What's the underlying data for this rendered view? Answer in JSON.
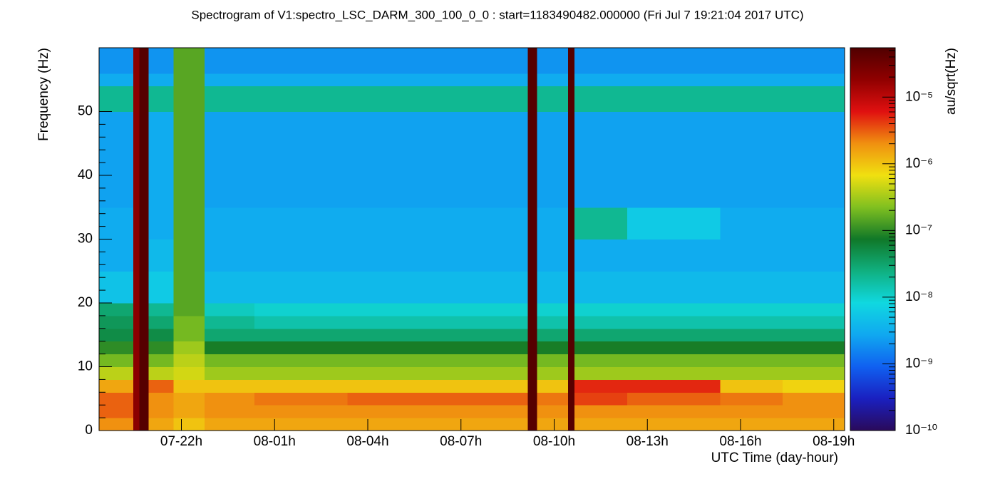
{
  "chart_data": {
    "type": "heatmap",
    "title": "Spectrogram of V1:spectro_LSC_DARM_300_100_0_0 : start=1183490482.000000 (Fri Jul  7 19:21:04 2017 UTC)",
    "x_label": "UTC Time (day-hour)",
    "y_label": "Frequency (Hz)",
    "colorbar_label": "au/sqrt(Hz)",
    "x": [
      0,
      1.1,
      1.3,
      1.6,
      2.4,
      3.4,
      5,
      8,
      11,
      13.8,
      14.1,
      15.1,
      15.3,
      17,
      20,
      22,
      24
    ],
    "y": [
      0,
      2,
      4,
      6,
      8,
      10,
      12,
      14,
      16,
      18,
      20,
      25,
      30,
      35,
      40,
      45,
      50,
      52,
      54,
      56,
      60
    ],
    "z": [
      [
        2e-06,
        2e-05,
        5e-05,
        1.5e-06,
        1e-06,
        1.5e-06,
        1.5e-06,
        1.5e-06,
        1.5e-06,
        5e-05,
        1.5e-06,
        5e-05,
        1.5e-06,
        1.5e-06,
        1.5e-06,
        1.5e-06
      ],
      [
        3e-06,
        2e-05,
        5e-05,
        2e-06,
        1.5e-06,
        2e-06,
        2e-06,
        2e-06,
        2e-06,
        5e-05,
        2e-06,
        5e-05,
        2e-06,
        2e-06,
        2e-06,
        2e-06
      ],
      [
        3e-06,
        2e-05,
        5e-05,
        2e-06,
        1.5e-06,
        2e-06,
        2.5e-06,
        3e-06,
        3e-06,
        5e-05,
        2.5e-06,
        5e-05,
        4e-06,
        3e-06,
        2.5e-06,
        2e-06
      ],
      [
        1.5e-06,
        2e-05,
        5e-05,
        3e-06,
        1e-06,
        1e-06,
        1e-06,
        1e-06,
        1e-06,
        5e-05,
        1e-06,
        5e-05,
        5e-06,
        5e-06,
        1e-06,
        8e-07
      ],
      [
        4e-07,
        2e-05,
        5e-05,
        4e-07,
        5e-07,
        3e-07,
        3e-07,
        3e-07,
        3e-07,
        5e-05,
        3e-07,
        5e-05,
        3e-07,
        3e-07,
        3e-07,
        3e-07
      ],
      [
        2e-07,
        2e-05,
        5e-05,
        2e-07,
        4e-07,
        2e-07,
        2e-07,
        2e-07,
        2e-07,
        5e-05,
        2e-07,
        5e-05,
        2e-07,
        2e-07,
        2e-07,
        2e-07
      ],
      [
        1e-07,
        2e-05,
        5e-05,
        1e-07,
        3e-07,
        8e-08,
        8e-08,
        8e-08,
        8e-08,
        5e-05,
        8e-08,
        5e-05,
        8e-08,
        8e-08,
        8e-08,
        8e-08
      ],
      [
        5e-08,
        2e-05,
        5e-05,
        5e-08,
        2e-07,
        3e-08,
        3e-08,
        3e-08,
        3e-08,
        5e-05,
        3e-08,
        5e-05,
        3e-08,
        3e-08,
        3e-08,
        3e-08
      ],
      [
        4e-08,
        2e-05,
        5e-05,
        3e-08,
        2e-07,
        2e-08,
        1.5e-08,
        1.5e-08,
        1.5e-08,
        5e-05,
        1.5e-08,
        5e-05,
        1.5e-08,
        1.5e-08,
        1.5e-08,
        1.5e-08
      ],
      [
        3e-08,
        2e-05,
        5e-05,
        2e-08,
        1.5e-07,
        1.2e-08,
        1e-08,
        1e-08,
        1e-08,
        5e-05,
        1e-08,
        5e-05,
        1e-08,
        1e-08,
        1e-08,
        1e-08
      ],
      [
        5e-09,
        2e-05,
        5e-05,
        6e-09,
        1.5e-07,
        4e-09,
        4e-09,
        4e-09,
        4e-09,
        5e-05,
        4e-09,
        5e-05,
        4e-09,
        4e-09,
        4e-09,
        4e-09
      ],
      [
        3e-09,
        2e-05,
        5e-05,
        4e-09,
        1.5e-07,
        3e-09,
        3e-09,
        3e-09,
        3e-09,
        5e-05,
        3e-09,
        5e-05,
        3e-09,
        3e-09,
        3e-09,
        3e-09
      ],
      [
        3e-09,
        2e-05,
        5e-05,
        3e-09,
        1.5e-07,
        3e-09,
        3e-09,
        3e-09,
        3e-09,
        5e-05,
        3e-09,
        5e-05,
        2e-08,
        6e-09,
        3e-09,
        3e-09
      ],
      [
        2.5e-09,
        2e-05,
        5e-05,
        3e-09,
        1.5e-07,
        2.5e-09,
        2.5e-09,
        2.5e-09,
        2.5e-09,
        5e-05,
        2.5e-09,
        5e-05,
        2.5e-09,
        2.5e-09,
        2.5e-09,
        2.5e-09
      ],
      [
        2.5e-09,
        2e-05,
        5e-05,
        3e-09,
        1.5e-07,
        2.5e-09,
        2.5e-09,
        2.5e-09,
        2.5e-09,
        5e-05,
        2.5e-09,
        5e-05,
        2.5e-09,
        2.5e-09,
        2.5e-09,
        2.5e-09
      ],
      [
        2.5e-09,
        2e-05,
        5e-05,
        3e-09,
        1.5e-07,
        2.5e-09,
        2.5e-09,
        2.5e-09,
        2.5e-09,
        5e-05,
        2.5e-09,
        5e-05,
        2.5e-09,
        2.5e-09,
        2.5e-09,
        2.5e-09
      ],
      [
        2e-08,
        2e-05,
        5e-05,
        2e-08,
        1.5e-07,
        2e-08,
        2e-08,
        2e-08,
        2e-08,
        5e-05,
        2e-08,
        5e-05,
        2e-08,
        2e-08,
        2e-08,
        2e-08
      ],
      [
        2e-08,
        2e-05,
        5e-05,
        2e-08,
        1.5e-07,
        2e-08,
        2e-08,
        2e-08,
        2e-08,
        5e-05,
        2e-08,
        5e-05,
        2e-08,
        2e-08,
        2e-08,
        2e-08
      ],
      [
        3e-09,
        2e-05,
        5e-05,
        3e-09,
        1.5e-07,
        3e-09,
        3e-09,
        3e-09,
        3e-09,
        5e-05,
        3e-09,
        5e-05,
        3e-09,
        3e-09,
        3e-09,
        3e-09
      ],
      [
        2e-09,
        2e-05,
        5e-05,
        2e-09,
        1.5e-07,
        2e-09,
        2e-09,
        2e-09,
        2e-09,
        5e-05,
        2e-09,
        5e-05,
        2e-09,
        2e-09,
        2e-09,
        2e-09
      ]
    ],
    "xlim": [
      0,
      24
    ],
    "xticks": [
      {
        "value": 2.65,
        "label": "07-22h"
      },
      {
        "value": 5.65,
        "label": "08-01h"
      },
      {
        "value": 8.65,
        "label": "08-04h"
      },
      {
        "value": 11.65,
        "label": "08-07h"
      },
      {
        "value": 14.65,
        "label": "08-10h"
      },
      {
        "value": 17.65,
        "label": "08-13h"
      },
      {
        "value": 20.65,
        "label": "08-16h"
      },
      {
        "value": 23.65,
        "label": "08-19h"
      }
    ],
    "ylim": [
      0,
      60
    ],
    "yticks": [
      0,
      10,
      20,
      30,
      40,
      50
    ],
    "zlim": [
      1e-10,
      5.5e-05
    ],
    "zlog": true,
    "zticks": [
      {
        "value": 1e-10,
        "label": "10⁻¹⁰"
      },
      {
        "value": 1e-09,
        "label": "10⁻⁹"
      },
      {
        "value": 1e-08,
        "label": "10⁻⁸"
      },
      {
        "value": 1e-07,
        "label": "10⁻⁷"
      },
      {
        "value": 1e-06,
        "label": "10⁻⁶"
      },
      {
        "value": 1e-05,
        "label": "10⁻⁵"
      }
    ],
    "colormap": [
      "#2a0a5a",
      "#1a20c0",
      "#1060f0",
      "#10a8f0",
      "#10d8e0",
      "#10b080",
      "#107828",
      "#80c020",
      "#f0e010",
      "#f09010",
      "#e01010",
      "#900000",
      "#500000"
    ]
  }
}
